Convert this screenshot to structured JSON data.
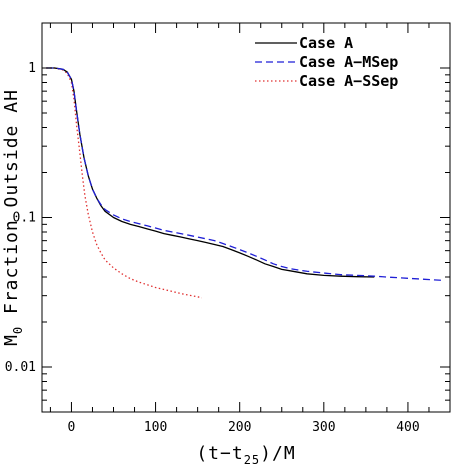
{
  "chart_data": {
    "type": "line",
    "xlabel": "(t−t25)/M",
    "xlabel_main": "(t−t",
    "xlabel_sub": "25",
    "xlabel_end": ")/M",
    "ylabel": "M0 Fraction Outside AH",
    "ylabel_main": "M",
    "ylabel_sub": "0",
    "ylabel_rest": " Fraction Outside AH",
    "xlim": [
      -35,
      450
    ],
    "ylim": [
      0.005,
      2.0
    ],
    "yscale": "log",
    "grid": false,
    "legend_position": "top-right",
    "x_ticks": [
      0,
      100,
      200,
      300,
      400
    ],
    "x_tick_labels": [
      "0",
      "100",
      "200",
      "300",
      "400"
    ],
    "y_ticks": [
      1,
      0.1,
      0.01
    ],
    "y_tick_labels": [
      "1",
      "0.1",
      "0.01"
    ],
    "series": [
      {
        "name": "Case A",
        "color": "#000000",
        "style": "solid",
        "x": [
          -30,
          -20,
          -10,
          -5,
          0,
          3,
          6,
          10,
          15,
          20,
          25,
          30,
          35,
          40,
          50,
          60,
          70,
          80,
          90,
          100,
          110,
          120,
          130,
          140,
          150,
          160,
          170,
          180,
          190,
          200,
          210,
          220,
          230,
          240,
          250,
          260,
          270,
          280,
          300,
          320,
          340,
          360
        ],
        "y": [
          1.0,
          1.0,
          0.98,
          0.94,
          0.84,
          0.7,
          0.52,
          0.36,
          0.25,
          0.19,
          0.155,
          0.135,
          0.12,
          0.11,
          0.1,
          0.094,
          0.09,
          0.087,
          0.084,
          0.081,
          0.078,
          0.076,
          0.074,
          0.072,
          0.07,
          0.068,
          0.066,
          0.064,
          0.061,
          0.058,
          0.055,
          0.052,
          0.049,
          0.047,
          0.045,
          0.044,
          0.043,
          0.042,
          0.041,
          0.0405,
          0.0402,
          0.04
        ]
      },
      {
        "name": "Case A−MSep",
        "color": "#1f1fd6",
        "style": "dashed",
        "x": [
          -30,
          -20,
          -10,
          -5,
          0,
          3,
          6,
          10,
          15,
          20,
          25,
          30,
          35,
          40,
          50,
          60,
          70,
          80,
          90,
          100,
          110,
          120,
          130,
          140,
          150,
          160,
          170,
          180,
          190,
          200,
          210,
          220,
          230,
          240,
          250,
          260,
          270,
          280,
          300,
          320,
          340,
          360,
          380,
          400,
          420,
          440
        ],
        "y": [
          1.0,
          1.0,
          0.98,
          0.94,
          0.84,
          0.7,
          0.52,
          0.36,
          0.25,
          0.19,
          0.155,
          0.135,
          0.122,
          0.113,
          0.104,
          0.098,
          0.094,
          0.091,
          0.088,
          0.085,
          0.082,
          0.08,
          0.078,
          0.076,
          0.074,
          0.072,
          0.07,
          0.067,
          0.064,
          0.061,
          0.058,
          0.055,
          0.052,
          0.049,
          0.047,
          0.0455,
          0.0445,
          0.0437,
          0.0425,
          0.0415,
          0.041,
          0.0405,
          0.0398,
          0.0392,
          0.0386,
          0.038
        ]
      },
      {
        "name": "Case A−SSep",
        "color": "#e03030",
        "style": "dotted",
        "x": [
          -30,
          -20,
          -10,
          -5,
          0,
          3,
          6,
          10,
          13,
          16,
          20,
          25,
          30,
          35,
          40,
          50,
          60,
          70,
          80,
          90,
          100,
          110,
          120,
          130,
          140,
          150,
          155
        ],
        "y": [
          1.0,
          1.0,
          0.97,
          0.92,
          0.8,
          0.62,
          0.42,
          0.27,
          0.19,
          0.14,
          0.105,
          0.08,
          0.066,
          0.058,
          0.052,
          0.046,
          0.042,
          0.039,
          0.037,
          0.0355,
          0.034,
          0.033,
          0.032,
          0.031,
          0.0302,
          0.0295,
          0.029
        ]
      }
    ]
  }
}
